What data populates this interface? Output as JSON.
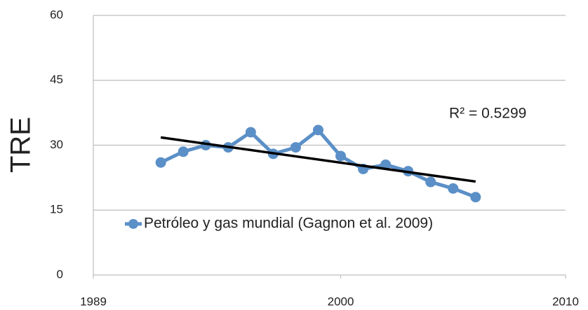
{
  "chart_data": {
    "type": "line",
    "ylabel": "TRE",
    "x": [
      1992,
      1993,
      1994,
      1995,
      1996,
      1997,
      1998,
      1999,
      2000,
      2001,
      2002,
      2003,
      2004,
      2005,
      2006
    ],
    "series": [
      {
        "name": "Petróleo y gas mundial (Gagnon et al. 2009)",
        "color": "#5b8fc7",
        "values": [
          26,
          28.5,
          30,
          29.5,
          33,
          28,
          29.5,
          33.5,
          27.5,
          24.5,
          25.5,
          24,
          21.5,
          20,
          18
        ]
      }
    ],
    "trendline": {
      "x": [
        1992,
        2006
      ],
      "values": [
        31.8,
        21.6
      ],
      "color": "#000000"
    },
    "annotation": "R² = 0.5299",
    "xlim": [
      1989,
      2010
    ],
    "xticks": [
      1989,
      2000,
      2010
    ],
    "ylim": [
      0,
      60
    ],
    "yticks": [
      0,
      15,
      30,
      45,
      60
    ],
    "grid": true,
    "legend": "lower left"
  }
}
